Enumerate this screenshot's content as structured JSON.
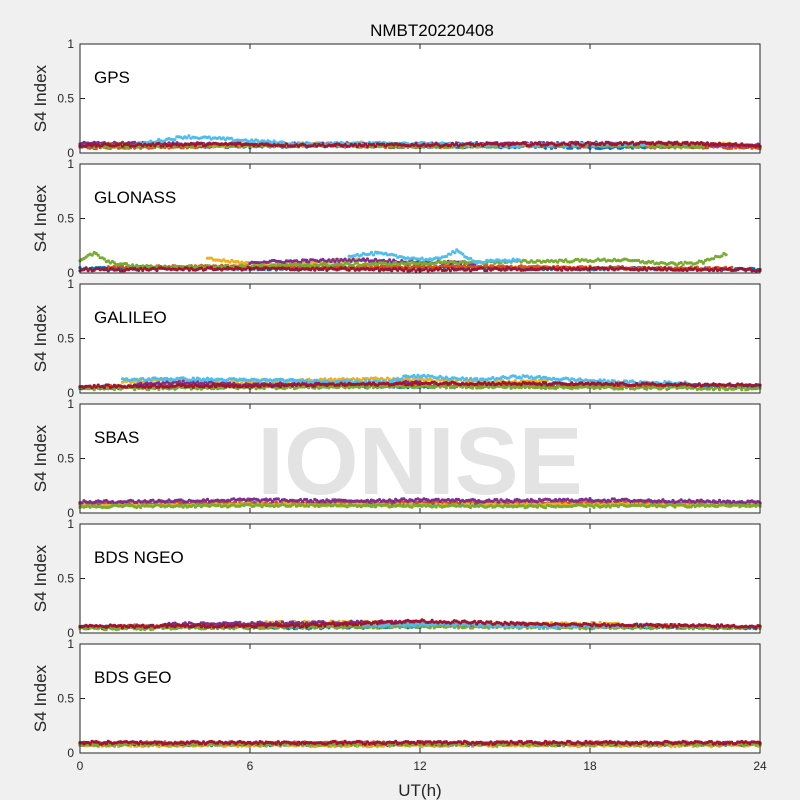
{
  "chart_data": {
    "type": "scatter",
    "title": "NMBT20220408",
    "xlabel": "UT(h)",
    "ylabel": "S4 Index",
    "xlim": [
      0,
      24
    ],
    "ylim": [
      0,
      1
    ],
    "x_ticks": [
      "0",
      "6",
      "12",
      "18",
      "24"
    ],
    "y_ticks": [
      "0",
      "0.5",
      "1"
    ],
    "grid": false,
    "watermark": "IONISE",
    "watermark_panel": 3,
    "series_colors": [
      "#0072bd",
      "#d95319",
      "#edb120",
      "#7e2f8e",
      "#77ac30",
      "#4dbeee",
      "#a2142f"
    ],
    "panels": [
      {
        "label": "GPS",
        "tracks": [
          {
            "color_index": 0,
            "x": [
              0,
              3,
              6,
              9,
              12,
              15,
              18,
              21,
              24
            ],
            "y": [
              0.06,
              0.07,
              0.06,
              0.07,
              0.06,
              0.06,
              0.05,
              0.06,
              0.06
            ]
          },
          {
            "color_index": 1,
            "x": [
              0,
              4,
              8,
              12,
              16,
              20,
              24
            ],
            "y": [
              0.05,
              0.06,
              0.07,
              0.06,
              0.07,
              0.06,
              0.05
            ]
          },
          {
            "color_index": 2,
            "x": [
              1,
              5,
              10,
              14,
              19,
              23
            ],
            "y": [
              0.08,
              0.07,
              0.09,
              0.07,
              0.08,
              0.08
            ]
          },
          {
            "color_index": 3,
            "x": [
              0,
              6,
              12,
              18,
              24
            ],
            "y": [
              0.09,
              0.08,
              0.08,
              0.09,
              0.07
            ]
          },
          {
            "color_index": 4,
            "x": [
              0.5,
              7,
              13,
              17,
              22
            ],
            "y": [
              0.06,
              0.07,
              0.06,
              0.07,
              0.06
            ]
          },
          {
            "color_index": 5,
            "x": [
              2,
              3.7,
              8,
              11,
              15,
              20
            ],
            "y": [
              0.08,
              0.15,
              0.08,
              0.09,
              0.07,
              0.08
            ]
          },
          {
            "color_index": 6,
            "x": [
              0,
              5,
              9,
              16,
              21,
              24
            ],
            "y": [
              0.07,
              0.08,
              0.07,
              0.08,
              0.09,
              0.07
            ]
          }
        ]
      },
      {
        "label": "GLONASS",
        "tracks": [
          {
            "color_index": 0,
            "x": [
              0,
              3,
              7,
              12,
              16,
              20,
              24
            ],
            "y": [
              0.04,
              0.05,
              0.04,
              0.05,
              0.04,
              0.04,
              0.03
            ]
          },
          {
            "color_index": 1,
            "x": [
              1,
              5,
              9,
              13,
              18,
              23
            ],
            "y": [
              0.05,
              0.06,
              0.05,
              0.06,
              0.05,
              0.04
            ]
          },
          {
            "color_index": 2,
            "x": [
              4.5,
              5.5,
              6.5,
              8,
              9.5,
              11
            ],
            "y": [
              0.13,
              0.1,
              0.08,
              0.09,
              0.12,
              0.1
            ]
          },
          {
            "color_index": 3,
            "x": [
              6,
              8,
              10,
              12,
              14
            ],
            "y": [
              0.1,
              0.11,
              0.12,
              0.1,
              0.09
            ]
          },
          {
            "color_index": 4,
            "x": [
              0,
              0.5,
              1,
              2,
              3,
              19,
              20,
              21,
              22,
              22.8
            ],
            "y": [
              0.12,
              0.18,
              0.1,
              0.06,
              0.05,
              0.12,
              0.1,
              0.08,
              0.1,
              0.18
            ]
          },
          {
            "color_index": 5,
            "x": [
              9.5,
              10.5,
              11.5,
              12.5,
              13.3,
              14,
              15.5
            ],
            "y": [
              0.16,
              0.18,
              0.14,
              0.12,
              0.2,
              0.1,
              0.12
            ]
          },
          {
            "color_index": 6,
            "x": [
              0,
              6,
              12,
              18,
              24
            ],
            "y": [
              0.03,
              0.04,
              0.03,
              0.04,
              0.03
            ]
          }
        ]
      },
      {
        "label": "GALILEO",
        "tracks": [
          {
            "color_index": 0,
            "x": [
              0,
              4,
              8,
              12,
              16,
              20,
              24
            ],
            "y": [
              0.05,
              0.06,
              0.07,
              0.06,
              0.08,
              0.07,
              0.06
            ]
          },
          {
            "color_index": 1,
            "x": [
              1,
              5,
              9,
              13,
              17,
              21
            ],
            "y": [
              0.06,
              0.07,
              0.08,
              0.07,
              0.06,
              0.07
            ]
          },
          {
            "color_index": 2,
            "x": [
              1.5,
              3,
              4.5,
              9,
              10.5,
              15,
              16.5
            ],
            "y": [
              0.1,
              0.12,
              0.1,
              0.12,
              0.13,
              0.1,
              0.11
            ]
          },
          {
            "color_index": 3,
            "x": [
              2,
              4,
              6,
              8,
              10,
              12
            ],
            "y": [
              0.08,
              0.1,
              0.07,
              0.09,
              0.08,
              0.1
            ]
          },
          {
            "color_index": 4,
            "x": [
              0,
              6,
              12,
              18,
              24
            ],
            "y": [
              0.04,
              0.05,
              0.06,
              0.05,
              0.04
            ]
          },
          {
            "color_index": 5,
            "x": [
              1.5,
              3,
              11,
              11.5,
              14,
              15.5,
              19,
              21.5
            ],
            "y": [
              0.12,
              0.13,
              0.1,
              0.16,
              0.12,
              0.15,
              0.1,
              0.09
            ]
          },
          {
            "color_index": 6,
            "x": [
              0,
              7,
              13,
              19,
              24
            ],
            "y": [
              0.06,
              0.07,
              0.09,
              0.08,
              0.07
            ]
          }
        ]
      },
      {
        "label": "SBAS",
        "tracks": [
          {
            "color_index": 0,
            "x": [
              0,
              4,
              8,
              12,
              16,
              20,
              24
            ],
            "y": [
              0.08,
              0.08,
              0.09,
              0.08,
              0.08,
              0.09,
              0.08
            ]
          },
          {
            "color_index": 1,
            "x": [
              0,
              6,
              12,
              18,
              24
            ],
            "y": [
              0.09,
              0.09,
              0.1,
              0.09,
              0.09
            ]
          },
          {
            "color_index": 2,
            "x": [
              0,
              6,
              12,
              18,
              24
            ],
            "y": [
              0.07,
              0.08,
              0.07,
              0.08,
              0.07
            ]
          },
          {
            "color_index": 3,
            "x": [
              0,
              3,
              6,
              9,
              12,
              15,
              18,
              21,
              24
            ],
            "y": [
              0.1,
              0.11,
              0.12,
              0.11,
              0.12,
              0.11,
              0.12,
              0.11,
              0.1
            ]
          },
          {
            "color_index": 4,
            "x": [
              0,
              8,
              16,
              24
            ],
            "y": [
              0.06,
              0.07,
              0.06,
              0.07
            ]
          }
        ]
      },
      {
        "label": "BDS NGEO",
        "tracks": [
          {
            "color_index": 0,
            "x": [
              0,
              4,
              8,
              12,
              16,
              20,
              24
            ],
            "y": [
              0.05,
              0.06,
              0.05,
              0.06,
              0.07,
              0.06,
              0.05
            ]
          },
          {
            "color_index": 1,
            "x": [
              1,
              5,
              9,
              13,
              17,
              21
            ],
            "y": [
              0.06,
              0.07,
              0.08,
              0.07,
              0.06,
              0.07
            ]
          },
          {
            "color_index": 2,
            "x": [
              6,
              9,
              15,
              19
            ],
            "y": [
              0.09,
              0.1,
              0.08,
              0.09
            ]
          },
          {
            "color_index": 3,
            "x": [
              3,
              7,
              11,
              14,
              18
            ],
            "y": [
              0.08,
              0.09,
              0.1,
              0.08,
              0.07
            ]
          },
          {
            "color_index": 4,
            "x": [
              0,
              6,
              12,
              18,
              24
            ],
            "y": [
              0.04,
              0.05,
              0.06,
              0.05,
              0.05
            ]
          },
          {
            "color_index": 5,
            "x": [
              10,
              13,
              16,
              20
            ],
            "y": [
              0.07,
              0.08,
              0.06,
              0.07
            ]
          },
          {
            "color_index": 6,
            "x": [
              0,
              8,
              12,
              16,
              24
            ],
            "y": [
              0.06,
              0.07,
              0.11,
              0.08,
              0.06
            ]
          }
        ]
      },
      {
        "label": "BDS GEO",
        "tracks": [
          {
            "color_index": 0,
            "x": [
              0,
              6,
              12,
              18,
              24
            ],
            "y": [
              0.08,
              0.08,
              0.08,
              0.08,
              0.08
            ]
          },
          {
            "color_index": 1,
            "x": [
              0,
              6,
              12,
              18,
              24
            ],
            "y": [
              0.09,
              0.09,
              0.09,
              0.09,
              0.09
            ]
          },
          {
            "color_index": 2,
            "x": [
              0,
              6,
              12,
              18,
              24
            ],
            "y": [
              0.07,
              0.07,
              0.07,
              0.07,
              0.07
            ]
          },
          {
            "color_index": 3,
            "x": [
              0,
              6,
              12,
              18,
              24
            ],
            "y": [
              0.085,
              0.085,
              0.085,
              0.085,
              0.085
            ]
          },
          {
            "color_index": 4,
            "x": [
              0,
              6,
              12,
              18,
              24
            ],
            "y": [
              0.08,
              0.08,
              0.08,
              0.08,
              0.08
            ]
          },
          {
            "color_index": 6,
            "x": [
              0,
              6,
              12,
              18,
              24
            ],
            "y": [
              0.095,
              0.095,
              0.095,
              0.095,
              0.095
            ]
          }
        ]
      }
    ]
  }
}
